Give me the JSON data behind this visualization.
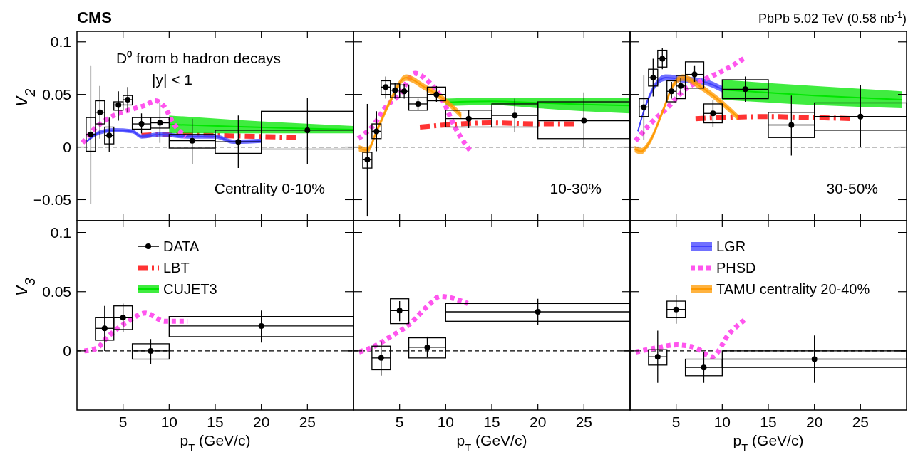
{
  "chart_data": [
    {
      "type": "scatter",
      "title": "CMS",
      "ylabel": "v$_{2}$",
      "legend": "bottom left",
      "xlim": [
        0,
        30
      ],
      "ylim": [
        -0.07,
        0.11
      ],
      "xticks": [
        5,
        10,
        15,
        20,
        25
      ],
      "yticks": [
        {
          "value": -0.05,
          "label": "−0.05"
        },
        0,
        0.05,
        0.1
      ],
      "tick_labels": "y",
      "annotations": [
        "D⁰ from b hadron decays",
        "|y| < 1",
        "Centrality 0-10%"
      ],
      "ref_lines": [
        {
          "axis": "y",
          "value": 0,
          "line_style": "dashed",
          "color": "#000000"
        }
      ],
      "series": [
        {
          "name": "DATA",
          "type": "scatter",
          "marker": "circle",
          "color": "#000000",
          "x": [
            1.5,
            2.5,
            3.5,
            4.5,
            5.5,
            7,
            9,
            12.5,
            17.5,
            25
          ],
          "values": [
            0.012,
            0.033,
            0.011,
            0.04,
            0.045,
            0.022,
            0.023,
            0.006,
            0.005,
            0.016
          ],
          "errors": [
            [
              -0.054,
              0.077
            ],
            [
              0.008,
              0.058
            ],
            [
              -0.005,
              0.028
            ],
            [
              0.025,
              0.053
            ],
            [
              0.033,
              0.057
            ],
            [
              0.013,
              0.032
            ],
            [
              0.004,
              0.042
            ],
            [
              -0.016,
              0.027
            ],
            [
              -0.02,
              0.03
            ],
            [
              -0.016,
              0.047
            ]
          ],
          "xerrors": [
            [
              1,
              2
            ],
            [
              2,
              3
            ],
            [
              3,
              4
            ],
            [
              4,
              5
            ],
            [
              5,
              6
            ],
            [
              6,
              8
            ],
            [
              8,
              10
            ],
            [
              10,
              15
            ],
            [
              15,
              20
            ],
            [
              20,
              30
            ]
          ]
        },
        {
          "type": "bar",
          "color": "#000000",
          "x": [
            1.5,
            2.5,
            3.5,
            4.5,
            5.5,
            7,
            9,
            12.5,
            17.5,
            25
          ],
          "base": [
            -0.004,
            0.022,
            0.003,
            0.035,
            0.04,
            0.017,
            0.018,
            -0.001,
            -0.006,
            -0.002
          ],
          "values": [
            0.032,
            0.022,
            0.016,
            0.008,
            0.009,
            0.011,
            0.01,
            0.013,
            0.022,
            0.036
          ]
        },
        {
          "name": "LBT",
          "type": "line",
          "line_style": "dashed",
          "color": "#ff3333",
          "x": [
            7,
            10,
            15,
            20,
            24
          ],
          "values": [
            0.011,
            0.012,
            0.011,
            0.01,
            0.009
          ]
        },
        {
          "name": "CUJET3",
          "type": "line",
          "color": "#00e600",
          "x": [
            10,
            17,
            23,
            30
          ],
          "values": [
            0.0215,
            0.0195,
            0.018,
            0.0165
          ],
          "lower": [
            0.013,
            0.013,
            0.013,
            0.013
          ],
          "upper": [
            0.03,
            0.026,
            0.023,
            0.02
          ]
        },
        {
          "type": "line",
          "color": "#4040ff",
          "x": [
            1,
            2.5,
            4,
            6,
            7,
            9,
            12,
            15,
            17,
            20
          ],
          "values": [
            0.005,
            0.014,
            0.016,
            0.015,
            0.01,
            0.012,
            0.01,
            0.01,
            0.005,
            0.006
          ],
          "lower": [
            0.004,
            0.012,
            0.014,
            0.013,
            0.008,
            0.01,
            0.008,
            0.008,
            0.003,
            0.004
          ],
          "upper": [
            0.006,
            0.016,
            0.018,
            0.017,
            0.012,
            0.014,
            0.012,
            0.012,
            0.007,
            0.008
          ]
        },
        {
          "type": "line",
          "line_style": "dotted",
          "color": "#ff55ee",
          "x": [
            0.6,
            2,
            4,
            6,
            7.5,
            8.5,
            9.5,
            10.5,
            11.8
          ],
          "values": [
            0.004,
            0.018,
            0.03,
            0.036,
            0.04,
            0.044,
            0.038,
            0.022,
            0.01
          ]
        }
      ]
    },
    {
      "type": "scatter",
      "xlim": [
        0,
        30
      ],
      "ylim": [
        -0.07,
        0.11
      ],
      "xticks": [
        5,
        10,
        15,
        20,
        25
      ],
      "yticks": [
        -0.05,
        0,
        0.05,
        0.1
      ],
      "tick_labels": false,
      "annotations": [
        "10-30%"
      ],
      "ref_lines": [
        {
          "axis": "y",
          "value": 0,
          "line_style": "dashed",
          "color": "#000000"
        }
      ],
      "series": [
        {
          "type": "scatter",
          "marker": "circle",
          "color": "#000000",
          "x": [
            1.5,
            2.5,
            3.5,
            4.5,
            5.5,
            7,
            9,
            12.5,
            17.5,
            25
          ],
          "values": [
            -0.012,
            0.015,
            0.057,
            0.054,
            0.053,
            0.041,
            0.05,
            0.027,
            0.03,
            0.025
          ],
          "errors": [
            [
              -0.066,
              0.041
            ],
            [
              -0.004,
              0.034
            ],
            [
              0.046,
              0.067
            ],
            [
              0.046,
              0.061
            ],
            [
              0.046,
              0.06
            ],
            [
              0.035,
              0.046
            ],
            [
              0.043,
              0.058
            ],
            [
              0.018,
              0.035
            ],
            [
              0.014,
              0.046
            ],
            [
              0,
              0.052
            ]
          ],
          "xerrors": [
            [
              1,
              2
            ],
            [
              2,
              3
            ],
            [
              3,
              4
            ],
            [
              4,
              5
            ],
            [
              5,
              6
            ],
            [
              6,
              8
            ],
            [
              8,
              10
            ],
            [
              10,
              15
            ],
            [
              15,
              20
            ],
            [
              20,
              30
            ]
          ]
        },
        {
          "type": "bar",
          "color": "#000000",
          "x": [
            1.5,
            2.5,
            3.5,
            4.5,
            5.5,
            7,
            9,
            12.5,
            17.5,
            25
          ],
          "base": [
            -0.02,
            0.008,
            0.05,
            0.047,
            0.047,
            0.035,
            0.044,
            0.019,
            0.019,
            0.008
          ],
          "values": [
            0.015,
            0.014,
            0.013,
            0.013,
            0.012,
            0.012,
            0.013,
            0.016,
            0.022,
            0.035
          ]
        },
        {
          "type": "line",
          "line_style": "dashed",
          "color": "#ff3333",
          "x": [
            7.2,
            10,
            14.8,
            20,
            24.3
          ],
          "values": [
            0.019,
            0.021,
            0.023,
            0.022,
            0.022
          ]
        },
        {
          "type": "line",
          "color": "#00e600",
          "x": [
            10,
            15,
            20,
            25,
            30
          ],
          "values": [
            0.0425,
            0.0435,
            0.042,
            0.0405,
            0.0395
          ],
          "lower": [
            0.039,
            0.04,
            0.037,
            0.034,
            0.032
          ],
          "upper": [
            0.046,
            0.047,
            0.047,
            0.047,
            0.047
          ]
        },
        {
          "type": "line",
          "line_style": "dotted",
          "color": "#ff55ee",
          "x": [
            0.5,
            2.1,
            3.6,
            4.8,
            6.7,
            7.9,
            9.7,
            11,
            12.7
          ],
          "values": [
            0.008,
            0.02,
            0.039,
            0.048,
            0.07,
            0.064,
            0.044,
            0.019,
            -0.004
          ]
        },
        {
          "type": "line",
          "color": "#ff9900",
          "x": [
            0.5,
            1.5,
            2.6,
            3.9,
            5.7,
            7.7,
            9.7,
            11.7
          ],
          "values": [
            -0.001,
            -0.003,
            0.017,
            0.042,
            0.066,
            0.057,
            0.046,
            0.03
          ],
          "lower": [
            -0.004,
            -0.006,
            0.014,
            0.039,
            0.063,
            0.054,
            0.043,
            0.027
          ],
          "upper": [
            0.002,
            0.0,
            0.02,
            0.045,
            0.069,
            0.06,
            0.049,
            0.033
          ]
        }
      ]
    },
    {
      "type": "scatter",
      "title": "PbPb 5.02 TeV (0.58 nb$^{-1}$)",
      "legend": "bottom left",
      "xlim": [
        0,
        30
      ],
      "ylim": [
        -0.07,
        0.11
      ],
      "xticks": [
        5,
        10,
        15,
        20,
        25
      ],
      "yticks": [
        -0.05,
        0,
        0.05,
        0.1
      ],
      "tick_labels": false,
      "annotations": [
        "30-50%"
      ],
      "ref_lines": [
        {
          "axis": "y",
          "value": 0,
          "line_style": "dashed",
          "color": "#000000"
        }
      ],
      "series": [
        {
          "type": "scatter",
          "marker": "circle",
          "color": "#000000",
          "x": [
            1.5,
            2.5,
            3.5,
            4.5,
            5.5,
            7,
            9,
            12.5,
            17.5,
            25
          ],
          "values": [
            0.038,
            0.066,
            0.084,
            0.053,
            0.058,
            0.069,
            0.032,
            0.055,
            0.021,
            0.029
          ],
          "errors": [
            [
              0.007,
              0.068
            ],
            [
              0.048,
              0.084
            ],
            [
              0.074,
              0.094
            ],
            [
              0.046,
              0.062
            ],
            [
              0.05,
              0.066
            ],
            [
              0.062,
              0.077
            ],
            [
              0.019,
              0.045
            ],
            [
              0.043,
              0.067
            ],
            [
              -0.008,
              0.049
            ],
            [
              0,
              0.059
            ]
          ],
          "xerrors": [
            [
              1,
              2
            ],
            [
              2,
              3
            ],
            [
              3,
              4
            ],
            [
              4,
              5
            ],
            [
              5,
              6
            ],
            [
              6,
              8
            ],
            [
              8,
              10
            ],
            [
              10,
              15
            ],
            [
              15,
              20
            ],
            [
              20,
              30
            ]
          ]
        },
        {
          "type": "bar",
          "color": "#000000",
          "x": [
            1.5,
            2.5,
            3.5,
            4.5,
            5.5,
            7,
            9,
            12.5,
            17.5,
            25
          ],
          "base": [
            0.029,
            0.058,
            0.076,
            0.043,
            0.046,
            0.056,
            0.023,
            0.046,
            0.009,
            0.016
          ],
          "values": [
            0.017,
            0.016,
            0.016,
            0.02,
            0.022,
            0.025,
            0.018,
            0.018,
            0.024,
            0.026
          ]
        },
        {
          "type": "line",
          "line_style": "dashed",
          "color": "#ff3333",
          "x": [
            7.1,
            10,
            14.8,
            20,
            24.3
          ],
          "values": [
            0.027,
            0.028,
            0.029,
            0.028,
            0.027
          ]
        },
        {
          "type": "line",
          "color": "#00e600",
          "x": [
            10,
            20,
            29.5
          ],
          "values": [
            0.0545,
            0.049,
            0.045
          ],
          "lower": [
            0.045,
            0.04,
            0.037
          ],
          "upper": [
            0.064,
            0.058,
            0.053
          ]
        },
        {
          "name": "LGR",
          "type": "line",
          "color": "#4040ff",
          "x": [
            0.85,
            1.6,
            3.85,
            6,
            8,
            10
          ],
          "values": [
            0.015,
            0.037,
            0.066,
            0.064,
            0.062,
            0.055
          ],
          "lower": [
            0.014,
            0.035,
            0.063,
            0.061,
            0.059,
            0.052
          ],
          "upper": [
            0.016,
            0.039,
            0.069,
            0.067,
            0.065,
            0.058
          ]
        },
        {
          "name": "PHSD",
          "type": "line",
          "line_style": "dotted",
          "color": "#ff55ee",
          "x": [
            0.6,
            2.2,
            4,
            6,
            8,
            10.2,
            12.5
          ],
          "values": [
            0.006,
            0.022,
            0.037,
            0.055,
            0.064,
            0.073,
            0.085
          ]
        },
        {
          "name": "TAMU centrality 20-40%",
          "type": "line",
          "color": "#ff9900",
          "x": [
            0.5,
            1.2,
            2.2,
            3.5,
            4.7,
            5.7,
            7.7,
            9.7,
            11.7
          ],
          "values": [
            -0.002,
            -0.004,
            0.006,
            0.033,
            0.059,
            0.066,
            0.057,
            0.044,
            0.028
          ],
          "lower": [
            -0.005,
            -0.007,
            0.003,
            0.03,
            0.056,
            0.063,
            0.054,
            0.041,
            0.025
          ],
          "upper": [
            0.001,
            -0.001,
            0.009,
            0.036,
            0.062,
            0.069,
            0.06,
            0.047,
            0.031
          ]
        }
      ]
    },
    {
      "type": "scatter",
      "ylabel": "v$_{3}$",
      "xlabel": "p$_{T}$ (GeV/c)",
      "xlim": [
        0,
        30
      ],
      "ylim": [
        -0.05,
        0.11
      ],
      "xticks": [
        5,
        10,
        15,
        20,
        25
      ],
      "yticks": [
        0,
        0.05,
        0.1
      ],
      "ref_lines": [
        {
          "axis": "y",
          "value": 0,
          "line_style": "dashed",
          "color": "#000000"
        }
      ],
      "series": [
        {
          "type": "scatter",
          "marker": "circle",
          "color": "#000000",
          "x": [
            3,
            5,
            8,
            20
          ],
          "values": [
            0.019,
            0.028,
            0.0,
            0.021
          ],
          "errors": [
            [
              0,
              0.038
            ],
            [
              0.016,
              0.04
            ],
            [
              -0.011,
              0.01
            ],
            [
              0.007,
              0.034
            ]
          ],
          "xerrors": [
            [
              2,
              4
            ],
            [
              4,
              6
            ],
            [
              6,
              10
            ],
            [
              10,
              30
            ]
          ]
        },
        {
          "type": "bar",
          "color": "#000000",
          "x": [
            3,
            5,
            8,
            20
          ],
          "base": [
            0.009,
            0.018,
            -0.007,
            0.012
          ],
          "values": [
            0.019,
            0.02,
            0.013,
            0.017
          ]
        },
        {
          "type": "line",
          "line_style": "dotted",
          "color": "#ff55ee",
          "x": [
            0.8,
            2.1,
            3.35,
            5.6,
            7.4,
            9.5,
            12
          ],
          "values": [
            0,
            0.002,
            0.012,
            0.025,
            0.032,
            0.025,
            0.025
          ]
        }
      ]
    },
    {
      "type": "scatter",
      "xlabel": "p$_{T}$ (GeV/c)",
      "xlim": [
        0,
        30
      ],
      "ylim": [
        -0.05,
        0.11
      ],
      "xticks": [
        5,
        10,
        15,
        20,
        25
      ],
      "yticks": [
        0,
        0.05,
        0.1
      ],
      "tick_labels": "x",
      "ref_lines": [
        {
          "axis": "y",
          "value": 0,
          "line_style": "dashed",
          "color": "#000000"
        }
      ],
      "series": [
        {
          "type": "scatter",
          "marker": "circle",
          "color": "#000000",
          "x": [
            3,
            5,
            8,
            20
          ],
          "values": [
            -0.006,
            0.034,
            0.003,
            0.033
          ],
          "errors": [
            [
              -0.021,
              0.008
            ],
            [
              0.025,
              0.042
            ],
            [
              -0.005,
              0.012
            ],
            [
              0.022,
              0.044
            ]
          ],
          "xerrors": [
            [
              2,
              4
            ],
            [
              4,
              6
            ],
            [
              6,
              10
            ],
            [
              10,
              30
            ]
          ]
        },
        {
          "type": "bar",
          "color": "#000000",
          "x": [
            3,
            5,
            8,
            20
          ],
          "base": [
            -0.016,
            0.023,
            -0.006,
            0.025
          ],
          "values": [
            0.02,
            0.021,
            0.017,
            0.015
          ]
        },
        {
          "type": "line",
          "line_style": "dotted",
          "color": "#ff55ee",
          "x": [
            0.6,
            2.3,
            4,
            6,
            8.2,
            9.4,
            12.4
          ],
          "values": [
            -0.001,
            0.004,
            0.012,
            0.022,
            0.039,
            0.046,
            0.04
          ]
        }
      ]
    },
    {
      "type": "scatter",
      "xlabel": "p$_{T}$ (GeV/c)",
      "xlim": [
        0,
        30
      ],
      "ylim": [
        -0.05,
        0.11
      ],
      "xticks": [
        5,
        10,
        15,
        20,
        25
      ],
      "yticks": [
        0,
        0.05,
        0.1
      ],
      "tick_labels": "x",
      "ref_lines": [
        {
          "axis": "y",
          "value": 0,
          "line_style": "dashed",
          "color": "#000000"
        }
      ],
      "series": [
        {
          "type": "scatter",
          "marker": "circle",
          "color": "#000000",
          "x": [
            3,
            5,
            8,
            20
          ],
          "values": [
            -0.005,
            0.035,
            -0.014,
            -0.007
          ],
          "errors": [
            [
              -0.027,
              0.017
            ],
            [
              0.023,
              0.047
            ],
            [
              -0.027,
              -0.001
            ],
            [
              -0.027,
              0.013
            ]
          ],
          "xerrors": [
            [
              2,
              4
            ],
            [
              4,
              6
            ],
            [
              6,
              10
            ],
            [
              10,
              30
            ]
          ]
        },
        {
          "type": "bar",
          "color": "#000000",
          "x": [
            3,
            5,
            8,
            20
          ],
          "base": [
            -0.012,
            0.028,
            -0.021,
            -0.014
          ],
          "values": [
            0.013,
            0.014,
            0.014,
            0.014
          ]
        },
        {
          "type": "line",
          "line_style": "dotted",
          "color": "#ff55ee",
          "x": [
            0.6,
            2.5,
            5,
            7,
            8.9,
            10.7,
            12.4
          ],
          "values": [
            -0.001,
            0.002,
            0.005,
            0.003,
            -0.005,
            0.014,
            0.026
          ]
        }
      ]
    }
  ]
}
